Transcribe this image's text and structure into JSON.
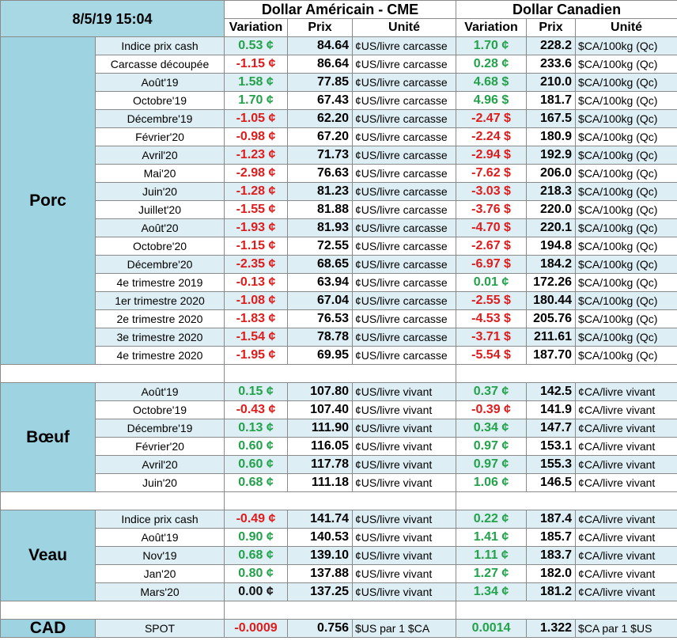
{
  "header": {
    "datetime": "8/5/19 15:04",
    "usd_group": "Dollar Américain - CME",
    "cad_group": "Dollar Canadien",
    "col_variation": "Variation",
    "col_prix": "Prix",
    "col_unite": "Unité"
  },
  "colors": {
    "positive": "#22a24a",
    "negative": "#e01b1b",
    "category_bg": "#9ed4e2",
    "row_alt_bg": "#ddeef4"
  },
  "sections": [
    {
      "name": "Porc",
      "rows": [
        {
          "label": "Indice prix cash",
          "usd_var": "0.53 ¢",
          "usd_prix": "84.64",
          "usd_unit": "¢US/livre carcasse",
          "cad_var": "1.70 ¢",
          "cad_prix": "228.2",
          "cad_unit": "$CA/100kg (Qc)"
        },
        {
          "label": "Carcasse découpée",
          "usd_var": "-1.15 ¢",
          "usd_prix": "86.64",
          "usd_unit": "¢US/livre carcasse",
          "cad_var": "0.28 ¢",
          "cad_prix": "233.6",
          "cad_unit": "$CA/100kg (Qc)"
        },
        {
          "label": "Août'19",
          "usd_var": "1.58 ¢",
          "usd_prix": "77.85",
          "usd_unit": "¢US/livre carcasse",
          "cad_var": "4.68 $",
          "cad_prix": "210.0",
          "cad_unit": "$CA/100kg (Qc)"
        },
        {
          "label": "Octobre'19",
          "usd_var": "1.70 ¢",
          "usd_prix": "67.43",
          "usd_unit": "¢US/livre carcasse",
          "cad_var": "4.96 $",
          "cad_prix": "181.7",
          "cad_unit": "$CA/100kg (Qc)"
        },
        {
          "label": "Décembre'19",
          "usd_var": "-1.05 ¢",
          "usd_prix": "62.20",
          "usd_unit": "¢US/livre carcasse",
          "cad_var": "-2.47 $",
          "cad_prix": "167.5",
          "cad_unit": "$CA/100kg (Qc)"
        },
        {
          "label": "Février'20",
          "usd_var": "-0.98 ¢",
          "usd_prix": "67.20",
          "usd_unit": "¢US/livre carcasse",
          "cad_var": "-2.24 $",
          "cad_prix": "180.9",
          "cad_unit": "$CA/100kg (Qc)"
        },
        {
          "label": "Avril'20",
          "usd_var": "-1.23 ¢",
          "usd_prix": "71.73",
          "usd_unit": "¢US/livre carcasse",
          "cad_var": "-2.94 $",
          "cad_prix": "192.9",
          "cad_unit": "$CA/100kg (Qc)"
        },
        {
          "label": "Mai'20",
          "usd_var": "-2.98 ¢",
          "usd_prix": "76.63",
          "usd_unit": "¢US/livre carcasse",
          "cad_var": "-7.62 $",
          "cad_prix": "206.0",
          "cad_unit": "$CA/100kg (Qc)"
        },
        {
          "label": "Juin'20",
          "usd_var": "-1.28 ¢",
          "usd_prix": "81.23",
          "usd_unit": "¢US/livre carcasse",
          "cad_var": "-3.03 $",
          "cad_prix": "218.3",
          "cad_unit": "$CA/100kg (Qc)"
        },
        {
          "label": "Juillet'20",
          "usd_var": "-1.55 ¢",
          "usd_prix": "81.88",
          "usd_unit": "¢US/livre carcasse",
          "cad_var": "-3.76 $",
          "cad_prix": "220.0",
          "cad_unit": "$CA/100kg (Qc)"
        },
        {
          "label": "Août'20",
          "usd_var": "-1.93 ¢",
          "usd_prix": "81.93",
          "usd_unit": "¢US/livre carcasse",
          "cad_var": "-4.70 $",
          "cad_prix": "220.1",
          "cad_unit": "$CA/100kg (Qc)"
        },
        {
          "label": "Octobre'20",
          "usd_var": "-1.15 ¢",
          "usd_prix": "72.55",
          "usd_unit": "¢US/livre carcasse",
          "cad_var": "-2.67 $",
          "cad_prix": "194.8",
          "cad_unit": "$CA/100kg (Qc)"
        },
        {
          "label": "Décembre'20",
          "usd_var": "-2.35 ¢",
          "usd_prix": "68.65",
          "usd_unit": "¢US/livre carcasse",
          "cad_var": "-6.97 $",
          "cad_prix": "184.2",
          "cad_unit": "$CA/100kg (Qc)"
        },
        {
          "label": "4e trimestre 2019",
          "usd_var": "-0.13 ¢",
          "usd_prix": "63.94",
          "usd_unit": "¢US/livre carcasse",
          "cad_var": "0.01 ¢",
          "cad_prix": "172.26",
          "cad_unit": "$CA/100kg (Qc)"
        },
        {
          "label": "1er trimestre 2020",
          "usd_var": "-1.08 ¢",
          "usd_prix": "67.04",
          "usd_unit": "¢US/livre carcasse",
          "cad_var": "-2.55 $",
          "cad_prix": "180.44",
          "cad_unit": "$CA/100kg (Qc)"
        },
        {
          "label": "2e trimestre 2020",
          "usd_var": "-1.83 ¢",
          "usd_prix": "76.53",
          "usd_unit": "¢US/livre carcasse",
          "cad_var": "-4.53 $",
          "cad_prix": "205.76",
          "cad_unit": "$CA/100kg (Qc)"
        },
        {
          "label": "3e trimestre 2020",
          "usd_var": "-1.54 ¢",
          "usd_prix": "78.78",
          "usd_unit": "¢US/livre carcasse",
          "cad_var": "-3.71 $",
          "cad_prix": "211.61",
          "cad_unit": "$CA/100kg (Qc)"
        },
        {
          "label": "4e trimestre 2020",
          "usd_var": "-1.95 ¢",
          "usd_prix": "69.95",
          "usd_unit": "¢US/livre carcasse",
          "cad_var": "-5.54 $",
          "cad_prix": "187.70",
          "cad_unit": "$CA/100kg (Qc)"
        }
      ]
    },
    {
      "name": "Bœuf",
      "rows": [
        {
          "label": "Août'19",
          "usd_var": "0.15 ¢",
          "usd_prix": "107.80",
          "usd_unit": "¢US/livre vivant",
          "cad_var": "0.37 ¢",
          "cad_prix": "142.5",
          "cad_unit": "¢CA/livre vivant"
        },
        {
          "label": "Octobre'19",
          "usd_var": "-0.43 ¢",
          "usd_prix": "107.40",
          "usd_unit": "¢US/livre vivant",
          "cad_var": "-0.39 ¢",
          "cad_prix": "141.9",
          "cad_unit": "¢CA/livre vivant"
        },
        {
          "label": "Décembre'19",
          "usd_var": "0.13 ¢",
          "usd_prix": "111.90",
          "usd_unit": "¢US/livre vivant",
          "cad_var": "0.34 ¢",
          "cad_prix": "147.7",
          "cad_unit": "¢CA/livre vivant"
        },
        {
          "label": "Février'20",
          "usd_var": "0.60 ¢",
          "usd_prix": "116.05",
          "usd_unit": "¢US/livre vivant",
          "cad_var": "0.97 ¢",
          "cad_prix": "153.1",
          "cad_unit": "¢CA/livre vivant"
        },
        {
          "label": "Avril'20",
          "usd_var": "0.60 ¢",
          "usd_prix": "117.78",
          "usd_unit": "¢US/livre vivant",
          "cad_var": "0.97 ¢",
          "cad_prix": "155.3",
          "cad_unit": "¢CA/livre vivant"
        },
        {
          "label": "Juin'20",
          "usd_var": "0.68 ¢",
          "usd_prix": "111.18",
          "usd_unit": "¢US/livre vivant",
          "cad_var": "1.06 ¢",
          "cad_prix": "146.5",
          "cad_unit": "¢CA/livre vivant"
        }
      ]
    },
    {
      "name": "Veau",
      "rows": [
        {
          "label": "Indice prix cash",
          "usd_var": "-0.49 ¢",
          "usd_prix": "141.74",
          "usd_unit": "¢US/livre vivant",
          "cad_var": "0.22 ¢",
          "cad_prix": "187.4",
          "cad_unit": "¢CA/livre vivant"
        },
        {
          "label": "Août'19",
          "usd_var": "0.90 ¢",
          "usd_prix": "140.53",
          "usd_unit": "¢US/livre vivant",
          "cad_var": "1.41 ¢",
          "cad_prix": "185.7",
          "cad_unit": "¢CA/livre vivant"
        },
        {
          "label": "Nov'19",
          "usd_var": "0.68 ¢",
          "usd_prix": "139.10",
          "usd_unit": "¢US/livre vivant",
          "cad_var": "1.11 ¢",
          "cad_prix": "183.7",
          "cad_unit": "¢CA/livre vivant"
        },
        {
          "label": "Jan'20",
          "usd_var": "0.80 ¢",
          "usd_prix": "137.88",
          "usd_unit": "¢US/livre vivant",
          "cad_var": "1.27 ¢",
          "cad_prix": "182.0",
          "cad_unit": "¢CA/livre vivant"
        },
        {
          "label": "Mars'20",
          "usd_var": "0.00 ¢",
          "usd_prix": "137.25",
          "usd_unit": "¢US/livre vivant",
          "cad_var": "1.34 ¢",
          "cad_prix": "181.2",
          "cad_unit": "¢CA/livre vivant"
        }
      ]
    },
    {
      "name": "CAD",
      "rows": [
        {
          "label": "SPOT",
          "usd_var": "-0.0009",
          "usd_prix": "0.756",
          "usd_unit": "$US par 1 $CA",
          "cad_var": "0.0014",
          "cad_prix": "1.322",
          "cad_unit": "$CA par 1 $US"
        }
      ]
    }
  ]
}
